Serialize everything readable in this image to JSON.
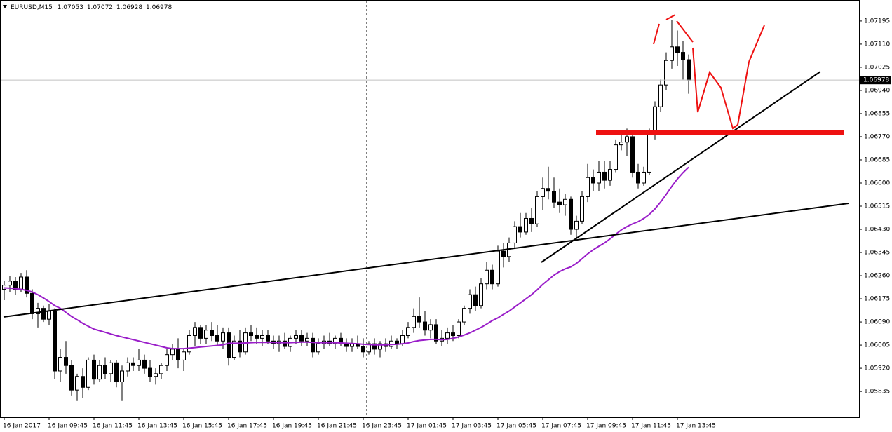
{
  "chart_data": {
    "type": "candlestick",
    "symbol": "EURUSD,M15",
    "header_values": [
      1.07053,
      1.07072,
      1.06928,
      1.06978
    ],
    "bid": 1.06978,
    "ylim": [
      1.0574,
      1.07272
    ],
    "yticks": [
      1.07195,
      {
        "value": 1.0711,
        "label": "1.07110"
      },
      1.07025,
      {
        "value": 1.0694,
        "label": "1.06940"
      },
      1.06855,
      {
        "value": 1.0677,
        "label": "1.06770"
      },
      1.06685,
      {
        "value": 1.066,
        "label": "1.06600"
      },
      1.06515,
      {
        "value": 1.0643,
        "label": "1.06430"
      },
      1.06345,
      {
        "value": 1.0626,
        "label": "1.06260"
      },
      1.06175,
      {
        "value": 1.0609,
        "label": "1.06090"
      },
      1.06005,
      {
        "value": 1.0592,
        "label": "1.05920"
      },
      1.05835
    ],
    "bull_color": "#ffffff",
    "bear_color": "#000000",
    "categories": [
      "16 Jan 2017",
      null,
      null,
      null,
      null,
      null,
      null,
      null,
      "16 Jan 09:45",
      null,
      null,
      null,
      null,
      null,
      null,
      null,
      "16 Jan 11:45",
      null,
      null,
      null,
      null,
      null,
      null,
      null,
      "16 Jan 13:45",
      null,
      null,
      null,
      null,
      null,
      null,
      null,
      "16 Jan 15:45",
      null,
      null,
      null,
      null,
      null,
      null,
      null,
      "16 Jan 17:45",
      null,
      null,
      null,
      null,
      null,
      null,
      null,
      "16 Jan 19:45",
      null,
      null,
      null,
      null,
      null,
      null,
      null,
      "16 Jan 21:45",
      null,
      null,
      null,
      null,
      null,
      null,
      null,
      "16 Jan 23:45",
      null,
      null,
      null,
      null,
      null,
      null,
      null,
      "17 Jan 01:45",
      null,
      null,
      null,
      null,
      null,
      null,
      null,
      "17 Jan 03:45",
      null,
      null,
      null,
      null,
      null,
      null,
      null,
      "17 Jan 05:45",
      null,
      null,
      null,
      null,
      null,
      null,
      null,
      "17 Jan 07:45",
      null,
      null,
      null,
      null,
      null,
      null,
      null,
      "17 Jan 09:45",
      null,
      null,
      null,
      null,
      null,
      null,
      null,
      "17 Jan 11:45",
      null,
      null,
      null,
      null,
      null,
      null,
      null,
      "17 Jan 13:45",
      null,
      null
    ],
    "open": [
      1.0621,
      1.06225,
      1.0624,
      1.0621,
      1.06255,
      1.06195,
      1.0612,
      1.0614,
      1.061,
      1.0613,
      1.0591,
      1.0596,
      1.0593,
      1.0584,
      1.0589,
      1.0585,
      1.0595,
      1.0588,
      1.0593,
      1.059,
      1.0594,
      1.0587,
      1.0591,
      1.0594,
      1.0593,
      1.0595,
      1.0592,
      1.0589,
      1.059,
      1.0593,
      1.0597,
      1.0599,
      1.0595,
      1.0598,
      1.0604,
      1.0607,
      1.0603,
      1.0606,
      1.0604,
      1.0602,
      1.0605,
      1.0596,
      1.0602,
      1.0598,
      1.0605,
      1.0604,
      1.0603,
      1.0604,
      1.0602,
      1.0601,
      1.0602,
      1.06,
      1.0603,
      1.0604,
      1.0602,
      1.0603,
      1.0598,
      1.0601,
      1.0602,
      1.0601,
      1.0603,
      1.0601,
      1.06,
      1.0601,
      1.06,
      1.0598,
      1.0601,
      1.0599,
      1.0601,
      1.06,
      1.0602,
      1.0601,
      1.0604,
      1.0607,
      1.0611,
      1.0609,
      1.0606,
      1.0608,
      1.0602,
      1.0603,
      1.0605,
      1.0604,
      1.0609,
      1.0614,
      1.0619,
      1.0615,
      1.0623,
      1.0628,
      1.0623,
      1.0635,
      1.0633,
      1.0638,
      1.0644,
      1.0642,
      1.0647,
      1.0645,
      1.0655,
      1.0658,
      1.0657,
      1.0653,
      1.0652,
      1.0654,
      1.0643,
      1.0646,
      1.0655,
      1.0662,
      1.066,
      1.0664,
      1.0661,
      1.0665,
      1.0674,
      1.0675,
      1.0677,
      1.0664,
      1.066,
      1.0664,
      1.0678,
      1.0688,
      1.0696,
      1.0705,
      1.071,
      1.0708,
      1.07053
    ],
    "high": [
      1.0624,
      1.0626,
      1.06255,
      1.0627,
      1.0628,
      1.0621,
      1.0616,
      1.0615,
      1.06155,
      1.0614,
      1.0599,
      1.0602,
      1.0595,
      1.059,
      1.0592,
      1.0596,
      1.0597,
      1.0595,
      1.0596,
      1.0595,
      1.0595,
      1.0593,
      1.0596,
      1.0596,
      1.0599,
      1.0597,
      1.0595,
      1.0592,
      1.0594,
      1.0599,
      1.0601,
      1.0603,
      1.0599,
      1.0606,
      1.0609,
      1.0608,
      1.0608,
      1.0609,
      1.0608,
      1.0607,
      1.0607,
      1.0604,
      1.0606,
      1.0607,
      1.0608,
      1.0607,
      1.0606,
      1.0606,
      1.0604,
      1.0604,
      1.0605,
      1.0604,
      1.0606,
      1.0606,
      1.0605,
      1.0605,
      1.0603,
      1.0604,
      1.0605,
      1.0604,
      1.0605,
      1.0603,
      1.0603,
      1.0604,
      1.0603,
      1.0602,
      1.0603,
      1.0602,
      1.0603,
      1.0604,
      1.0603,
      1.0606,
      1.0609,
      1.0614,
      1.0618,
      1.0613,
      1.061,
      1.061,
      1.0606,
      1.0607,
      1.0608,
      1.061,
      1.0615,
      1.0621,
      1.0622,
      1.0625,
      1.0631,
      1.063,
      1.0637,
      1.0638,
      1.064,
      1.0646,
      1.0649,
      1.0649,
      1.0651,
      1.0657,
      1.0662,
      1.0666,
      1.0662,
      1.0658,
      1.0656,
      1.0655,
      1.0648,
      1.0657,
      1.0667,
      1.0665,
      1.0668,
      1.0668,
      1.0668,
      1.0676,
      1.0678,
      1.068,
      1.0678,
      1.0667,
      1.0666,
      1.068,
      1.069,
      1.0698,
      1.0708,
      1.072,
      1.0716,
      1.0712,
      1.07072
    ],
    "low": [
      1.0617,
      1.062,
      1.0619,
      1.062,
      1.0618,
      1.061,
      1.0607,
      1.0609,
      1.0608,
      1.0588,
      1.0587,
      1.059,
      1.0582,
      1.058,
      1.0581,
      1.0584,
      1.0586,
      1.0587,
      1.0588,
      1.0587,
      1.0585,
      1.058,
      1.0589,
      1.0591,
      1.0591,
      1.059,
      1.0587,
      1.0586,
      1.0588,
      1.0591,
      1.0595,
      1.0592,
      1.0591,
      1.0597,
      1.06,
      1.0601,
      1.0601,
      1.0602,
      1.06,
      1.0599,
      1.0593,
      1.0595,
      1.0596,
      1.0597,
      1.0602,
      1.0601,
      1.06,
      1.0601,
      1.0599,
      1.0598,
      1.0599,
      1.0598,
      1.0601,
      1.06,
      1.06,
      1.0596,
      1.0597,
      1.0599,
      1.06,
      1.0599,
      1.06,
      1.0598,
      1.0598,
      1.0599,
      1.0596,
      1.0597,
      1.0597,
      1.0596,
      1.0598,
      1.0599,
      1.0599,
      1.06,
      1.0603,
      1.0605,
      1.0607,
      1.0604,
      1.0603,
      1.0601,
      1.06,
      1.0601,
      1.0602,
      1.0603,
      1.0608,
      1.0612,
      1.0613,
      1.0614,
      1.0621,
      1.0621,
      1.0622,
      1.0629,
      1.0631,
      1.0636,
      1.064,
      1.0641,
      1.0642,
      1.0644,
      1.065,
      1.0654,
      1.0651,
      1.0649,
      1.0648,
      1.0641,
      1.064,
      1.0645,
      1.0653,
      1.0657,
      1.0657,
      1.0658,
      1.0659,
      1.0664,
      1.0672,
      1.067,
      1.0662,
      1.0658,
      1.0659,
      1.0663,
      1.0676,
      1.0686,
      1.0694,
      1.0702,
      1.0703,
      1.0698,
      1.06928
    ],
    "close": [
      1.06225,
      1.0624,
      1.0621,
      1.06255,
      1.06195,
      1.0612,
      1.0614,
      1.061,
      1.0613,
      1.0591,
      1.0596,
      1.0593,
      1.0584,
      1.0589,
      1.0585,
      1.0595,
      1.0588,
      1.0593,
      1.059,
      1.0594,
      1.0587,
      1.0591,
      1.0594,
      1.0593,
      1.0595,
      1.0592,
      1.0589,
      1.059,
      1.0593,
      1.0597,
      1.0599,
      1.0595,
      1.0598,
      1.0604,
      1.0607,
      1.0603,
      1.0606,
      1.0604,
      1.0602,
      1.0605,
      1.0596,
      1.0602,
      1.0598,
      1.0605,
      1.0604,
      1.0603,
      1.0604,
      1.0602,
      1.0601,
      1.0602,
      1.06,
      1.0603,
      1.0604,
      1.0602,
      1.0603,
      1.0598,
      1.0601,
      1.0602,
      1.0601,
      1.0603,
      1.0601,
      1.06,
      1.0601,
      1.06,
      1.0598,
      1.0601,
      1.0599,
      1.0601,
      1.06,
      1.0602,
      1.0601,
      1.0604,
      1.0607,
      1.0611,
      1.0609,
      1.0606,
      1.0608,
      1.0602,
      1.0603,
      1.0605,
      1.0604,
      1.0609,
      1.0614,
      1.0619,
      1.0615,
      1.0623,
      1.0628,
      1.0623,
      1.0635,
      1.0633,
      1.0638,
      1.0644,
      1.0642,
      1.0647,
      1.0645,
      1.0655,
      1.0658,
      1.0657,
      1.0653,
      1.0652,
      1.0654,
      1.0643,
      1.0646,
      1.0655,
      1.0662,
      1.066,
      1.0664,
      1.0661,
      1.0665,
      1.0674,
      1.0675,
      1.0677,
      1.0664,
      1.066,
      1.0664,
      1.0678,
      1.0688,
      1.0696,
      1.0705,
      1.071,
      1.0708,
      1.07053,
      1.06978
    ],
    "ma": {
      "color": "#9a1ec9",
      "values": [
        1.06215,
        1.06214,
        1.06212,
        1.0621,
        1.06206,
        1.062,
        1.0619,
        1.06178,
        1.06165,
        1.0615,
        1.0614,
        1.06125,
        1.0611,
        1.06098,
        1.06085,
        1.06074,
        1.06064,
        1.06058,
        1.06052,
        1.06046,
        1.0604,
        1.06035,
        1.0603,
        1.06025,
        1.0602,
        1.06015,
        1.0601,
        1.06005,
        1.06,
        1.05995,
        1.05992,
        1.05992,
        1.05992,
        1.05994,
        1.05996,
        1.05998,
        1.06,
        1.06002,
        1.06004,
        1.06006,
        1.06012,
        1.06012,
        1.06012,
        1.06013,
        1.06014,
        1.06015,
        1.06015,
        1.06015,
        1.06015,
        1.06014,
        1.06014,
        1.06014,
        1.06015,
        1.06016,
        1.06016,
        1.06015,
        1.06014,
        1.06014,
        1.06014,
        1.06014,
        1.06013,
        1.06012,
        1.06011,
        1.0601,
        1.06008,
        1.06007,
        1.06006,
        1.06006,
        1.06006,
        1.06007,
        1.06008,
        1.0601,
        1.06013,
        1.06018,
        1.06022,
        1.06024,
        1.06026,
        1.06026,
        1.06025,
        1.06026,
        1.0603,
        1.06035,
        1.06042,
        1.0605,
        1.0606,
        1.0607,
        1.06082,
        1.06095,
        1.06105,
        1.06118,
        1.0613,
        1.06145,
        1.0616,
        1.06175,
        1.0619,
        1.06208,
        1.06228,
        1.06245,
        1.06262,
        1.06275,
        1.06285,
        1.06292,
        1.06305,
        1.06322,
        1.0634,
        1.06355,
        1.06368,
        1.0638,
        1.06395,
        1.06412,
        1.06428,
        1.0644,
        1.0645,
        1.06458,
        1.0647,
        1.06485,
        1.06505,
        1.0653,
        1.06558,
        1.06588,
        1.06615,
        1.06638,
        1.06658
      ]
    }
  }
}
